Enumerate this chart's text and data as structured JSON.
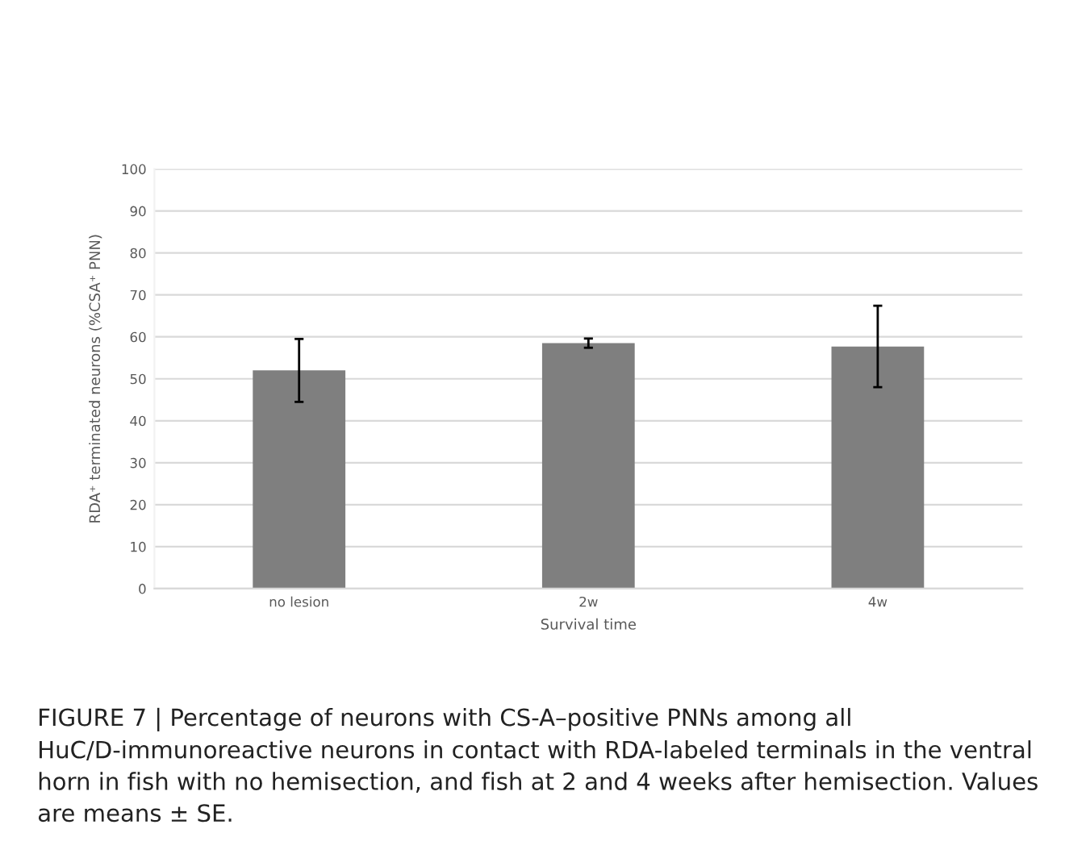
{
  "chart_data": {
    "type": "bar",
    "categories": [
      "no lesion",
      "2w",
      "4w"
    ],
    "values": [
      52,
      58.5,
      57.7
    ],
    "errors": [
      7.5,
      1.1,
      9.7
    ],
    "color": "#7f7f7f",
    "xlabel": "Survival time",
    "ylabel": "RDA⁺ terminated neurons (%CSA⁺ PNN)",
    "ylim": [
      0,
      100
    ],
    "yticks": [
      0,
      10,
      20,
      30,
      40,
      50,
      60,
      70,
      80,
      90,
      100
    ],
    "grid": "y",
    "annotations": [
      "FIGURE 7 | Percentage of neurons with CS-A–positive PNNs among all HuC/D-immunoreactive neurons in contact with RDA-labeled terminals in the ventral horn in fish with no hemisection, and fish at 2 and 4 weeks after hemisection. Values are means ± SE."
    ]
  }
}
